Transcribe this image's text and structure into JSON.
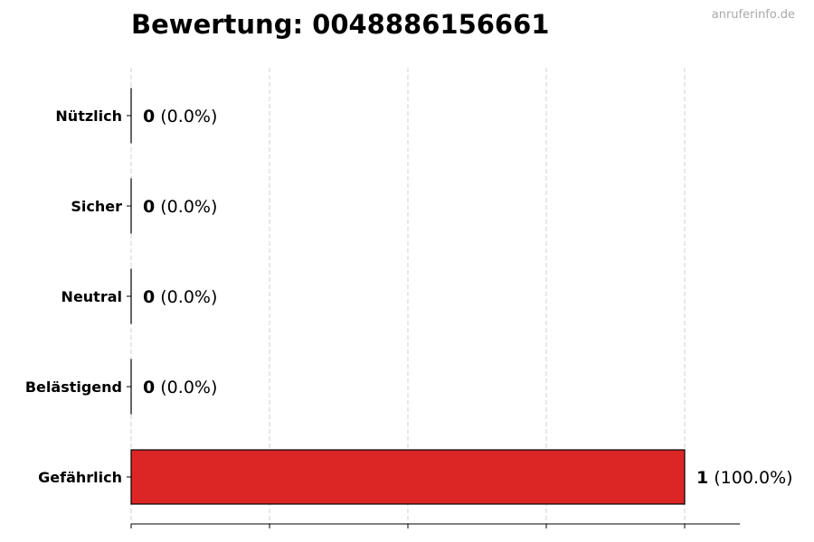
{
  "title": "Bewertung: 0048886156661",
  "watermark": "anruferinfo.de",
  "chart_data": {
    "type": "bar",
    "orientation": "horizontal",
    "title": "Bewertung: 0048886156661",
    "xlabel": "",
    "ylabel": "",
    "categories": [
      "Nützlich",
      "Sicher",
      "Neutral",
      "Belästigend",
      "Gefährlich"
    ],
    "values": [
      0,
      0,
      0,
      0,
      1
    ],
    "data_labels": [
      {
        "count": "0",
        "percent": "(0.0%)"
      },
      {
        "count": "0",
        "percent": "(0.0%)"
      },
      {
        "count": "0",
        "percent": "(0.0%)"
      },
      {
        "count": "0",
        "percent": "(0.0%)"
      },
      {
        "count": "1",
        "percent": "(100.0%)"
      }
    ],
    "xlim": [
      0,
      1.1
    ],
    "xticks": [
      0,
      0.25,
      0.5,
      0.75,
      1
    ],
    "xtick_labels_shown": false,
    "grid": "vertical dashed",
    "bar_color": "#dc2626",
    "bar_edge_color": "#000000"
  }
}
